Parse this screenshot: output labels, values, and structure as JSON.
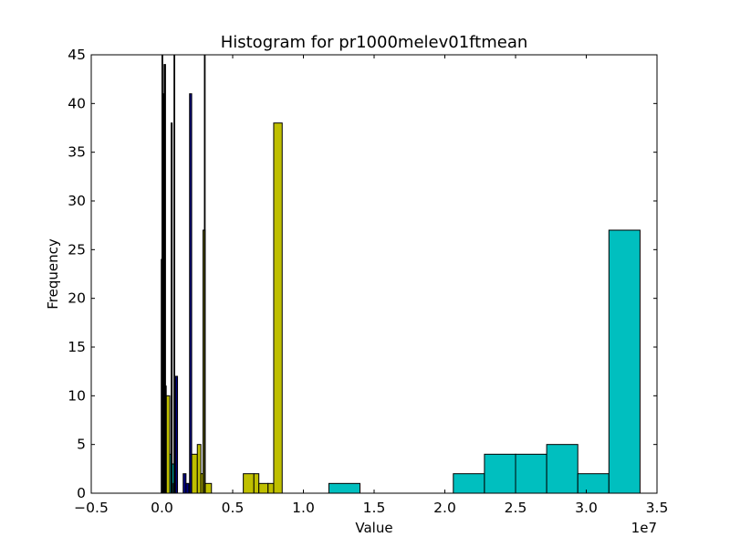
{
  "chart_data": {
    "type": "bar",
    "title": "Histogram for pr1000melev01ftmean",
    "xlabel": "Value",
    "ylabel": "Frequency",
    "x_offset_label": "1e7",
    "xlim": [
      -0.5,
      3.5
    ],
    "ylim": [
      0,
      45
    ],
    "x_scale_note_units": "1e7",
    "xticks": [
      "−0.5",
      "0.0",
      "0.5",
      "1.0",
      "1.5",
      "2.0",
      "2.5",
      "3.0",
      "3.5"
    ],
    "xtick_values": [
      -0.5,
      0.0,
      0.5,
      1.0,
      1.5,
      2.0,
      2.5,
      3.0,
      3.5
    ],
    "yticks": [
      "0",
      "5",
      "10",
      "15",
      "20",
      "25",
      "30",
      "35",
      "40",
      "45"
    ],
    "ytick_values": [
      0,
      5,
      10,
      15,
      20,
      25,
      30,
      35,
      40,
      45
    ],
    "grid": false,
    "series": [
      {
        "color": "#00BFBF",
        "bins": [
          {
            "x0": 1.18,
            "x1": 1.4,
            "value": 1
          },
          {
            "x0": 2.06,
            "x1": 2.28,
            "value": 2
          },
          {
            "x0": 2.28,
            "x1": 2.5,
            "value": 4
          },
          {
            "x0": 2.5,
            "x1": 2.72,
            "value": 4
          },
          {
            "x0": 2.72,
            "x1": 2.94,
            "value": 5
          },
          {
            "x0": 2.94,
            "x1": 3.16,
            "value": 2
          },
          {
            "x0": 3.16,
            "x1": 3.38,
            "value": 27
          },
          {
            "x0": 0.04,
            "x1": 0.07,
            "value": 4
          },
          {
            "x0": 0.07,
            "x1": 0.1,
            "value": 3
          }
        ]
      },
      {
        "color": "#BFBF00",
        "bins": [
          {
            "x0": 0.575,
            "x1": 0.65,
            "value": 2
          },
          {
            "x0": 0.65,
            "x1": 0.685,
            "value": 2
          },
          {
            "x0": 0.685,
            "x1": 0.75,
            "value": 1
          },
          {
            "x0": 0.75,
            "x1": 0.79,
            "value": 1
          },
          {
            "x0": 0.79,
            "x1": 0.85,
            "value": 38
          },
          {
            "x0": 0.21,
            "x1": 0.25,
            "value": 4
          },
          {
            "x0": 0.25,
            "x1": 0.275,
            "value": 5
          },
          {
            "x0": 0.275,
            "x1": 0.29,
            "value": 2
          },
          {
            "x0": 0.29,
            "x1": 0.305,
            "value": 27
          },
          {
            "x0": 0.305,
            "x1": 0.35,
            "value": 1
          },
          {
            "x0": 0.03,
            "x1": 0.055,
            "value": 10
          }
        ]
      },
      {
        "color": "#00007F",
        "bins": [
          {
            "x0": 0.195,
            "x1": 0.21,
            "value": 41
          },
          {
            "x0": 0.15,
            "x1": 0.17,
            "value": 2
          },
          {
            "x0": 0.17,
            "x1": 0.19,
            "value": 1
          },
          {
            "x0": 0.08,
            "x1": 0.095,
            "value": 1
          },
          {
            "x0": 0.095,
            "x1": 0.11,
            "value": 12
          }
        ]
      },
      {
        "color": "#000000",
        "bins": [
          {
            "x0": -0.005,
            "x1": 0.0,
            "value": 24
          },
          {
            "x0": 0.0,
            "x1": 0.005,
            "value": 45
          },
          {
            "x0": 0.005,
            "x1": 0.01,
            "value": 29
          },
          {
            "x0": 0.01,
            "x1": 0.015,
            "value": 41
          },
          {
            "x0": 0.015,
            "x1": 0.02,
            "value": 44
          },
          {
            "x0": 0.02,
            "x1": 0.025,
            "value": 44
          },
          {
            "x0": 0.025,
            "x1": 0.03,
            "value": 11
          },
          {
            "x0": 0.065,
            "x1": 0.072,
            "value": 38
          },
          {
            "x0": 0.085,
            "x1": 0.09,
            "value": 45
          },
          {
            "x0": 0.3,
            "x1": 0.305,
            "value": 45
          }
        ]
      }
    ]
  }
}
